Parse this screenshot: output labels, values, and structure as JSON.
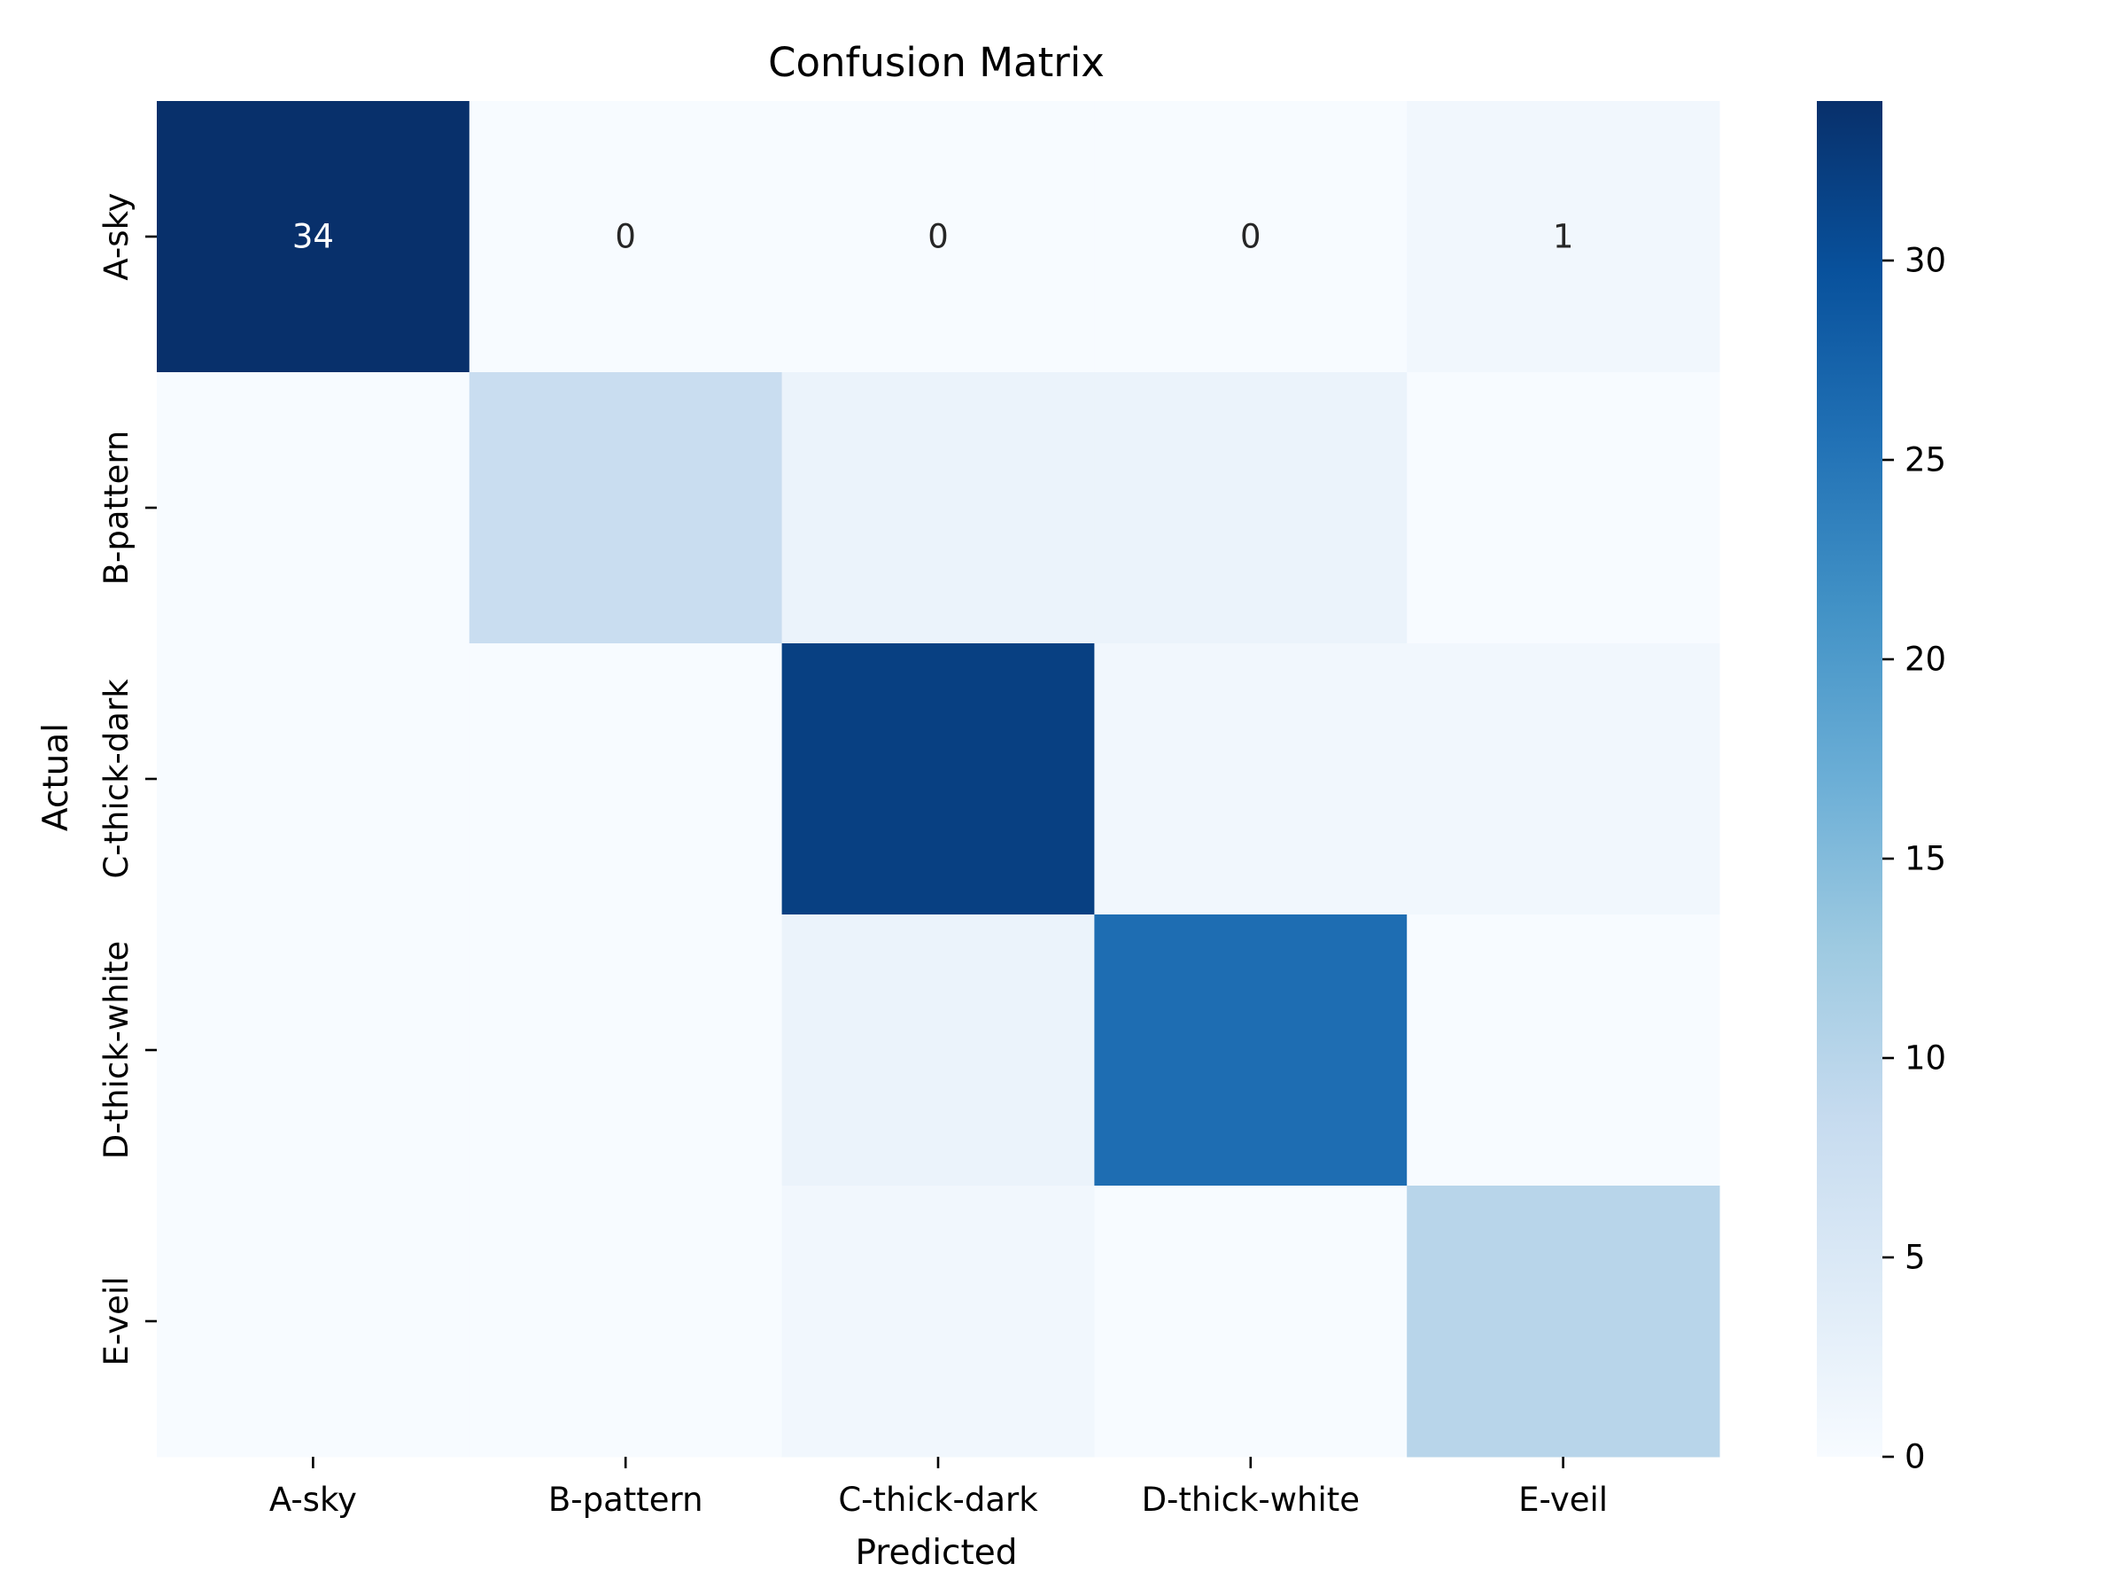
{
  "chart_data": {
    "type": "heatmap",
    "title": "Confusion Matrix",
    "xlabel": "Predicted",
    "ylabel": "Actual",
    "x_categories": [
      "A-sky",
      "B-pattern",
      "C-thick-dark",
      "D-thick-white",
      "E-veil"
    ],
    "y_categories": [
      "A-sky",
      "B-pattern",
      "C-thick-dark",
      "D-thick-white",
      "E-veil"
    ],
    "matrix": [
      [
        34,
        0,
        0,
        0,
        1
      ],
      [
        0,
        8,
        2,
        2,
        0
      ],
      [
        0,
        0,
        32,
        1,
        1
      ],
      [
        0,
        0,
        2,
        26,
        0
      ],
      [
        0,
        0,
        1,
        0,
        10
      ]
    ],
    "annotated_row": 0,
    "colorbar": {
      "min": 0,
      "max": 34,
      "ticks": [
        0,
        5,
        10,
        15,
        20,
        25,
        30
      ]
    },
    "colormap": "Blues",
    "colormap_stops": [
      "#f7fbff",
      "#deebf7",
      "#c6dbef",
      "#9ecae1",
      "#6baed6",
      "#4292c6",
      "#2171b5",
      "#08519c",
      "#08306b"
    ]
  }
}
